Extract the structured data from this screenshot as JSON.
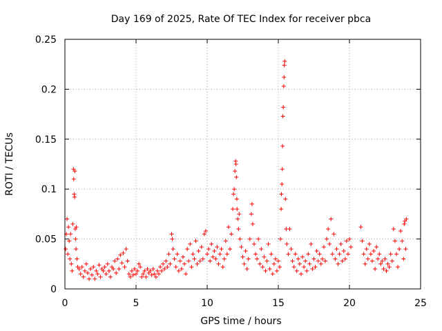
{
  "chart_data": {
    "type": "scatter",
    "title": "Day 169 of 2025, Rate Of TEC Index for receiver pbca",
    "xlabel": "GPS time / hours",
    "ylabel": "ROTI / TECUs",
    "xlim": [
      0,
      25
    ],
    "ylim": [
      0,
      0.25
    ],
    "xticks": [
      "0",
      "5",
      "10",
      "15",
      "20",
      "25"
    ],
    "yticks": [
      "0",
      "0.05",
      "0.1",
      "0.15",
      "0.2",
      "0.25"
    ],
    "grid": true,
    "marker": "plus",
    "color": "#ff0000",
    "series": [
      {
        "points": [
          [
            0.05,
            0.04
          ],
          [
            0.1,
            0.055
          ],
          [
            0.15,
            0.07
          ],
          [
            0.2,
            0.035
          ],
          [
            0.25,
            0.062
          ],
          [
            0.3,
            0.048
          ],
          [
            0.35,
            0.03
          ],
          [
            0.4,
            0.055
          ],
          [
            0.45,
            0.025
          ],
          [
            0.5,
            0.018
          ],
          [
            0.55,
            0.065
          ],
          [
            0.6,
            0.12
          ],
          [
            0.62,
            0.11
          ],
          [
            0.65,
            0.095
          ],
          [
            0.68,
            0.092
          ],
          [
            0.7,
            0.118
          ],
          [
            0.72,
            0.06
          ],
          [
            0.75,
            0.05
          ],
          [
            0.78,
            0.04
          ],
          [
            0.8,
            0.062
          ],
          [
            0.85,
            0.03
          ],
          [
            0.9,
            0.022
          ],
          [
            1.0,
            0.02
          ],
          [
            1.1,
            0.015
          ],
          [
            1.2,
            0.022
          ],
          [
            1.3,
            0.012
          ],
          [
            1.4,
            0.018
          ],
          [
            1.5,
            0.025
          ],
          [
            1.6,
            0.016
          ],
          [
            1.7,
            0.01
          ],
          [
            1.8,
            0.02
          ],
          [
            1.9,
            0.014
          ],
          [
            2.0,
            0.022
          ],
          [
            2.1,
            0.01
          ],
          [
            2.2,
            0.018
          ],
          [
            2.3,
            0.015
          ],
          [
            2.4,
            0.024
          ],
          [
            2.5,
            0.012
          ],
          [
            2.6,
            0.02
          ],
          [
            2.7,
            0.018
          ],
          [
            2.8,
            0.022
          ],
          [
            2.9,
            0.015
          ],
          [
            3.0,
            0.025
          ],
          [
            3.1,
            0.018
          ],
          [
            3.2,
            0.012
          ],
          [
            3.3,
            0.022
          ],
          [
            3.4,
            0.02
          ],
          [
            3.5,
            0.028
          ],
          [
            3.6,
            0.016
          ],
          [
            3.7,
            0.03
          ],
          [
            3.8,
            0.02
          ],
          [
            3.9,
            0.034
          ],
          [
            4.0,
            0.026
          ],
          [
            4.1,
            0.036
          ],
          [
            4.2,
            0.022
          ],
          [
            4.3,
            0.04
          ],
          [
            4.4,
            0.028
          ],
          [
            4.5,
            0.015
          ],
          [
            4.6,
            0.012
          ],
          [
            4.7,
            0.018
          ],
          [
            4.8,
            0.014
          ],
          [
            4.9,
            0.02
          ],
          [
            5.0,
            0.015
          ],
          [
            5.1,
            0.018
          ],
          [
            5.2,
            0.025
          ],
          [
            5.3,
            0.022
          ],
          [
            5.4,
            0.012
          ],
          [
            5.5,
            0.015
          ],
          [
            5.6,
            0.018
          ],
          [
            5.7,
            0.012
          ],
          [
            5.8,
            0.02
          ],
          [
            5.9,
            0.016
          ],
          [
            6.0,
            0.018
          ],
          [
            6.1,
            0.014
          ],
          [
            6.2,
            0.02
          ],
          [
            6.3,
            0.015
          ],
          [
            6.4,
            0.012
          ],
          [
            6.5,
            0.018
          ],
          [
            6.6,
            0.015
          ],
          [
            6.7,
            0.022
          ],
          [
            6.8,
            0.018
          ],
          [
            6.9,
            0.025
          ],
          [
            7.0,
            0.02
          ],
          [
            7.1,
            0.028
          ],
          [
            7.2,
            0.022
          ],
          [
            7.3,
            0.035
          ],
          [
            7.4,
            0.025
          ],
          [
            7.5,
            0.055
          ],
          [
            7.55,
            0.05
          ],
          [
            7.6,
            0.04
          ],
          [
            7.7,
            0.03
          ],
          [
            7.8,
            0.022
          ],
          [
            7.9,
            0.035
          ],
          [
            8.0,
            0.018
          ],
          [
            8.1,
            0.028
          ],
          [
            8.2,
            0.02
          ],
          [
            8.3,
            0.032
          ],
          [
            8.4,
            0.025
          ],
          [
            8.5,
            0.015
          ],
          [
            8.6,
            0.04
          ],
          [
            8.7,
            0.028
          ],
          [
            8.8,
            0.045
          ],
          [
            8.9,
            0.022
          ],
          [
            9.0,
            0.035
          ],
          [
            9.1,
            0.03
          ],
          [
            9.2,
            0.048
          ],
          [
            9.3,
            0.025
          ],
          [
            9.4,
            0.038
          ],
          [
            9.5,
            0.028
          ],
          [
            9.6,
            0.042
          ],
          [
            9.7,
            0.03
          ],
          [
            9.8,
            0.055
          ],
          [
            9.9,
            0.058
          ],
          [
            10.0,
            0.035
          ],
          [
            10.1,
            0.04
          ],
          [
            10.2,
            0.028
          ],
          [
            10.3,
            0.045
          ],
          [
            10.4,
            0.032
          ],
          [
            10.5,
            0.038
          ],
          [
            10.6,
            0.03
          ],
          [
            10.7,
            0.042
          ],
          [
            10.8,
            0.025
          ],
          [
            10.9,
            0.035
          ],
          [
            11.0,
            0.04
          ],
          [
            11.1,
            0.022
          ],
          [
            11.2,
            0.03
          ],
          [
            11.3,
            0.048
          ],
          [
            11.4,
            0.035
          ],
          [
            11.5,
            0.062
          ],
          [
            11.6,
            0.04
          ],
          [
            11.7,
            0.055
          ],
          [
            11.8,
            0.08
          ],
          [
            11.85,
            0.095
          ],
          [
            11.9,
            0.1
          ],
          [
            11.95,
            0.118
          ],
          [
            12.0,
            0.128
          ],
          [
            12.02,
            0.125
          ],
          [
            12.05,
            0.112
          ],
          [
            12.08,
            0.09
          ],
          [
            12.1,
            0.08
          ],
          [
            12.15,
            0.07
          ],
          [
            12.2,
            0.06
          ],
          [
            12.25,
            0.075
          ],
          [
            12.3,
            0.05
          ],
          [
            12.4,
            0.042
          ],
          [
            12.5,
            0.032
          ],
          [
            12.6,
            0.025
          ],
          [
            12.7,
            0.038
          ],
          [
            12.8,
            0.02
          ],
          [
            12.9,
            0.03
          ],
          [
            13.0,
            0.05
          ],
          [
            13.1,
            0.075
          ],
          [
            13.15,
            0.085
          ],
          [
            13.2,
            0.065
          ],
          [
            13.3,
            0.045
          ],
          [
            13.4,
            0.035
          ],
          [
            13.5,
            0.03
          ],
          [
            13.6,
            0.05
          ],
          [
            13.7,
            0.025
          ],
          [
            13.8,
            0.04
          ],
          [
            13.9,
            0.022
          ],
          [
            14.0,
            0.032
          ],
          [
            14.1,
            0.018
          ],
          [
            14.2,
            0.028
          ],
          [
            14.3,
            0.045
          ],
          [
            14.4,
            0.02
          ],
          [
            14.5,
            0.035
          ],
          [
            14.6,
            0.015
          ],
          [
            14.7,
            0.025
          ],
          [
            14.8,
            0.03
          ],
          [
            14.9,
            0.018
          ],
          [
            15.0,
            0.028
          ],
          [
            15.1,
            0.022
          ],
          [
            15.15,
            0.05
          ],
          [
            15.2,
            0.08
          ],
          [
            15.22,
            0.095
          ],
          [
            15.25,
            0.105
          ],
          [
            15.28,
            0.12
          ],
          [
            15.3,
            0.143
          ],
          [
            15.32,
            0.173
          ],
          [
            15.35,
            0.182
          ],
          [
            15.38,
            0.203
          ],
          [
            15.4,
            0.212
          ],
          [
            15.42,
            0.224
          ],
          [
            15.45,
            0.228
          ],
          [
            15.5,
            0.09
          ],
          [
            15.55,
            0.06
          ],
          [
            15.6,
            0.045
          ],
          [
            15.7,
            0.035
          ],
          [
            15.8,
            0.06
          ],
          [
            15.9,
            0.04
          ],
          [
            16.0,
            0.028
          ],
          [
            16.1,
            0.022
          ],
          [
            16.2,
            0.035
          ],
          [
            16.3,
            0.018
          ],
          [
            16.4,
            0.03
          ],
          [
            16.5,
            0.025
          ],
          [
            16.6,
            0.015
          ],
          [
            16.7,
            0.032
          ],
          [
            16.8,
            0.022
          ],
          [
            16.9,
            0.028
          ],
          [
            17.0,
            0.018
          ],
          [
            17.1,
            0.035
          ],
          [
            17.2,
            0.025
          ],
          [
            17.3,
            0.045
          ],
          [
            17.4,
            0.02
          ],
          [
            17.5,
            0.03
          ],
          [
            17.6,
            0.022
          ],
          [
            17.7,
            0.038
          ],
          [
            17.8,
            0.028
          ],
          [
            17.9,
            0.035
          ],
          [
            18.0,
            0.025
          ],
          [
            18.1,
            0.03
          ],
          [
            18.2,
            0.042
          ],
          [
            18.3,
            0.028
          ],
          [
            18.4,
            0.05
          ],
          [
            18.5,
            0.06
          ],
          [
            18.6,
            0.045
          ],
          [
            18.7,
            0.07
          ],
          [
            18.8,
            0.035
          ],
          [
            18.9,
            0.055
          ],
          [
            19.0,
            0.03
          ],
          [
            19.1,
            0.04
          ],
          [
            19.2,
            0.025
          ],
          [
            19.3,
            0.035
          ],
          [
            19.4,
            0.045
          ],
          [
            19.5,
            0.028
          ],
          [
            19.6,
            0.038
          ],
          [
            19.7,
            0.03
          ],
          [
            19.8,
            0.048
          ],
          [
            19.9,
            0.035
          ],
          [
            20.0,
            0.05
          ],
          [
            20.1,
            0.042
          ],
          [
            20.8,
            0.062
          ],
          [
            20.9,
            0.048
          ],
          [
            21.0,
            0.035
          ],
          [
            21.1,
            0.025
          ],
          [
            21.2,
            0.04
          ],
          [
            21.3,
            0.03
          ],
          [
            21.4,
            0.045
          ],
          [
            21.5,
            0.035
          ],
          [
            21.6,
            0.028
          ],
          [
            21.7,
            0.038
          ],
          [
            21.8,
            0.02
          ],
          [
            21.9,
            0.042
          ],
          [
            22.0,
            0.03
          ],
          [
            22.1,
            0.035
          ],
          [
            22.2,
            0.025
          ],
          [
            22.3,
            0.028
          ],
          [
            22.4,
            0.02
          ],
          [
            22.5,
            0.03
          ],
          [
            22.6,
            0.018
          ],
          [
            22.7,
            0.025
          ],
          [
            22.8,
            0.022
          ],
          [
            22.9,
            0.035
          ],
          [
            23.0,
            0.028
          ],
          [
            23.1,
            0.06
          ],
          [
            23.2,
            0.048
          ],
          [
            23.3,
            0.035
          ],
          [
            23.4,
            0.022
          ],
          [
            23.5,
            0.04
          ],
          [
            23.6,
            0.058
          ],
          [
            23.7,
            0.048
          ],
          [
            23.8,
            0.03
          ],
          [
            23.85,
            0.065
          ],
          [
            23.9,
            0.068
          ],
          [
            23.95,
            0.04
          ],
          [
            24.0,
            0.07
          ]
        ]
      }
    ]
  }
}
